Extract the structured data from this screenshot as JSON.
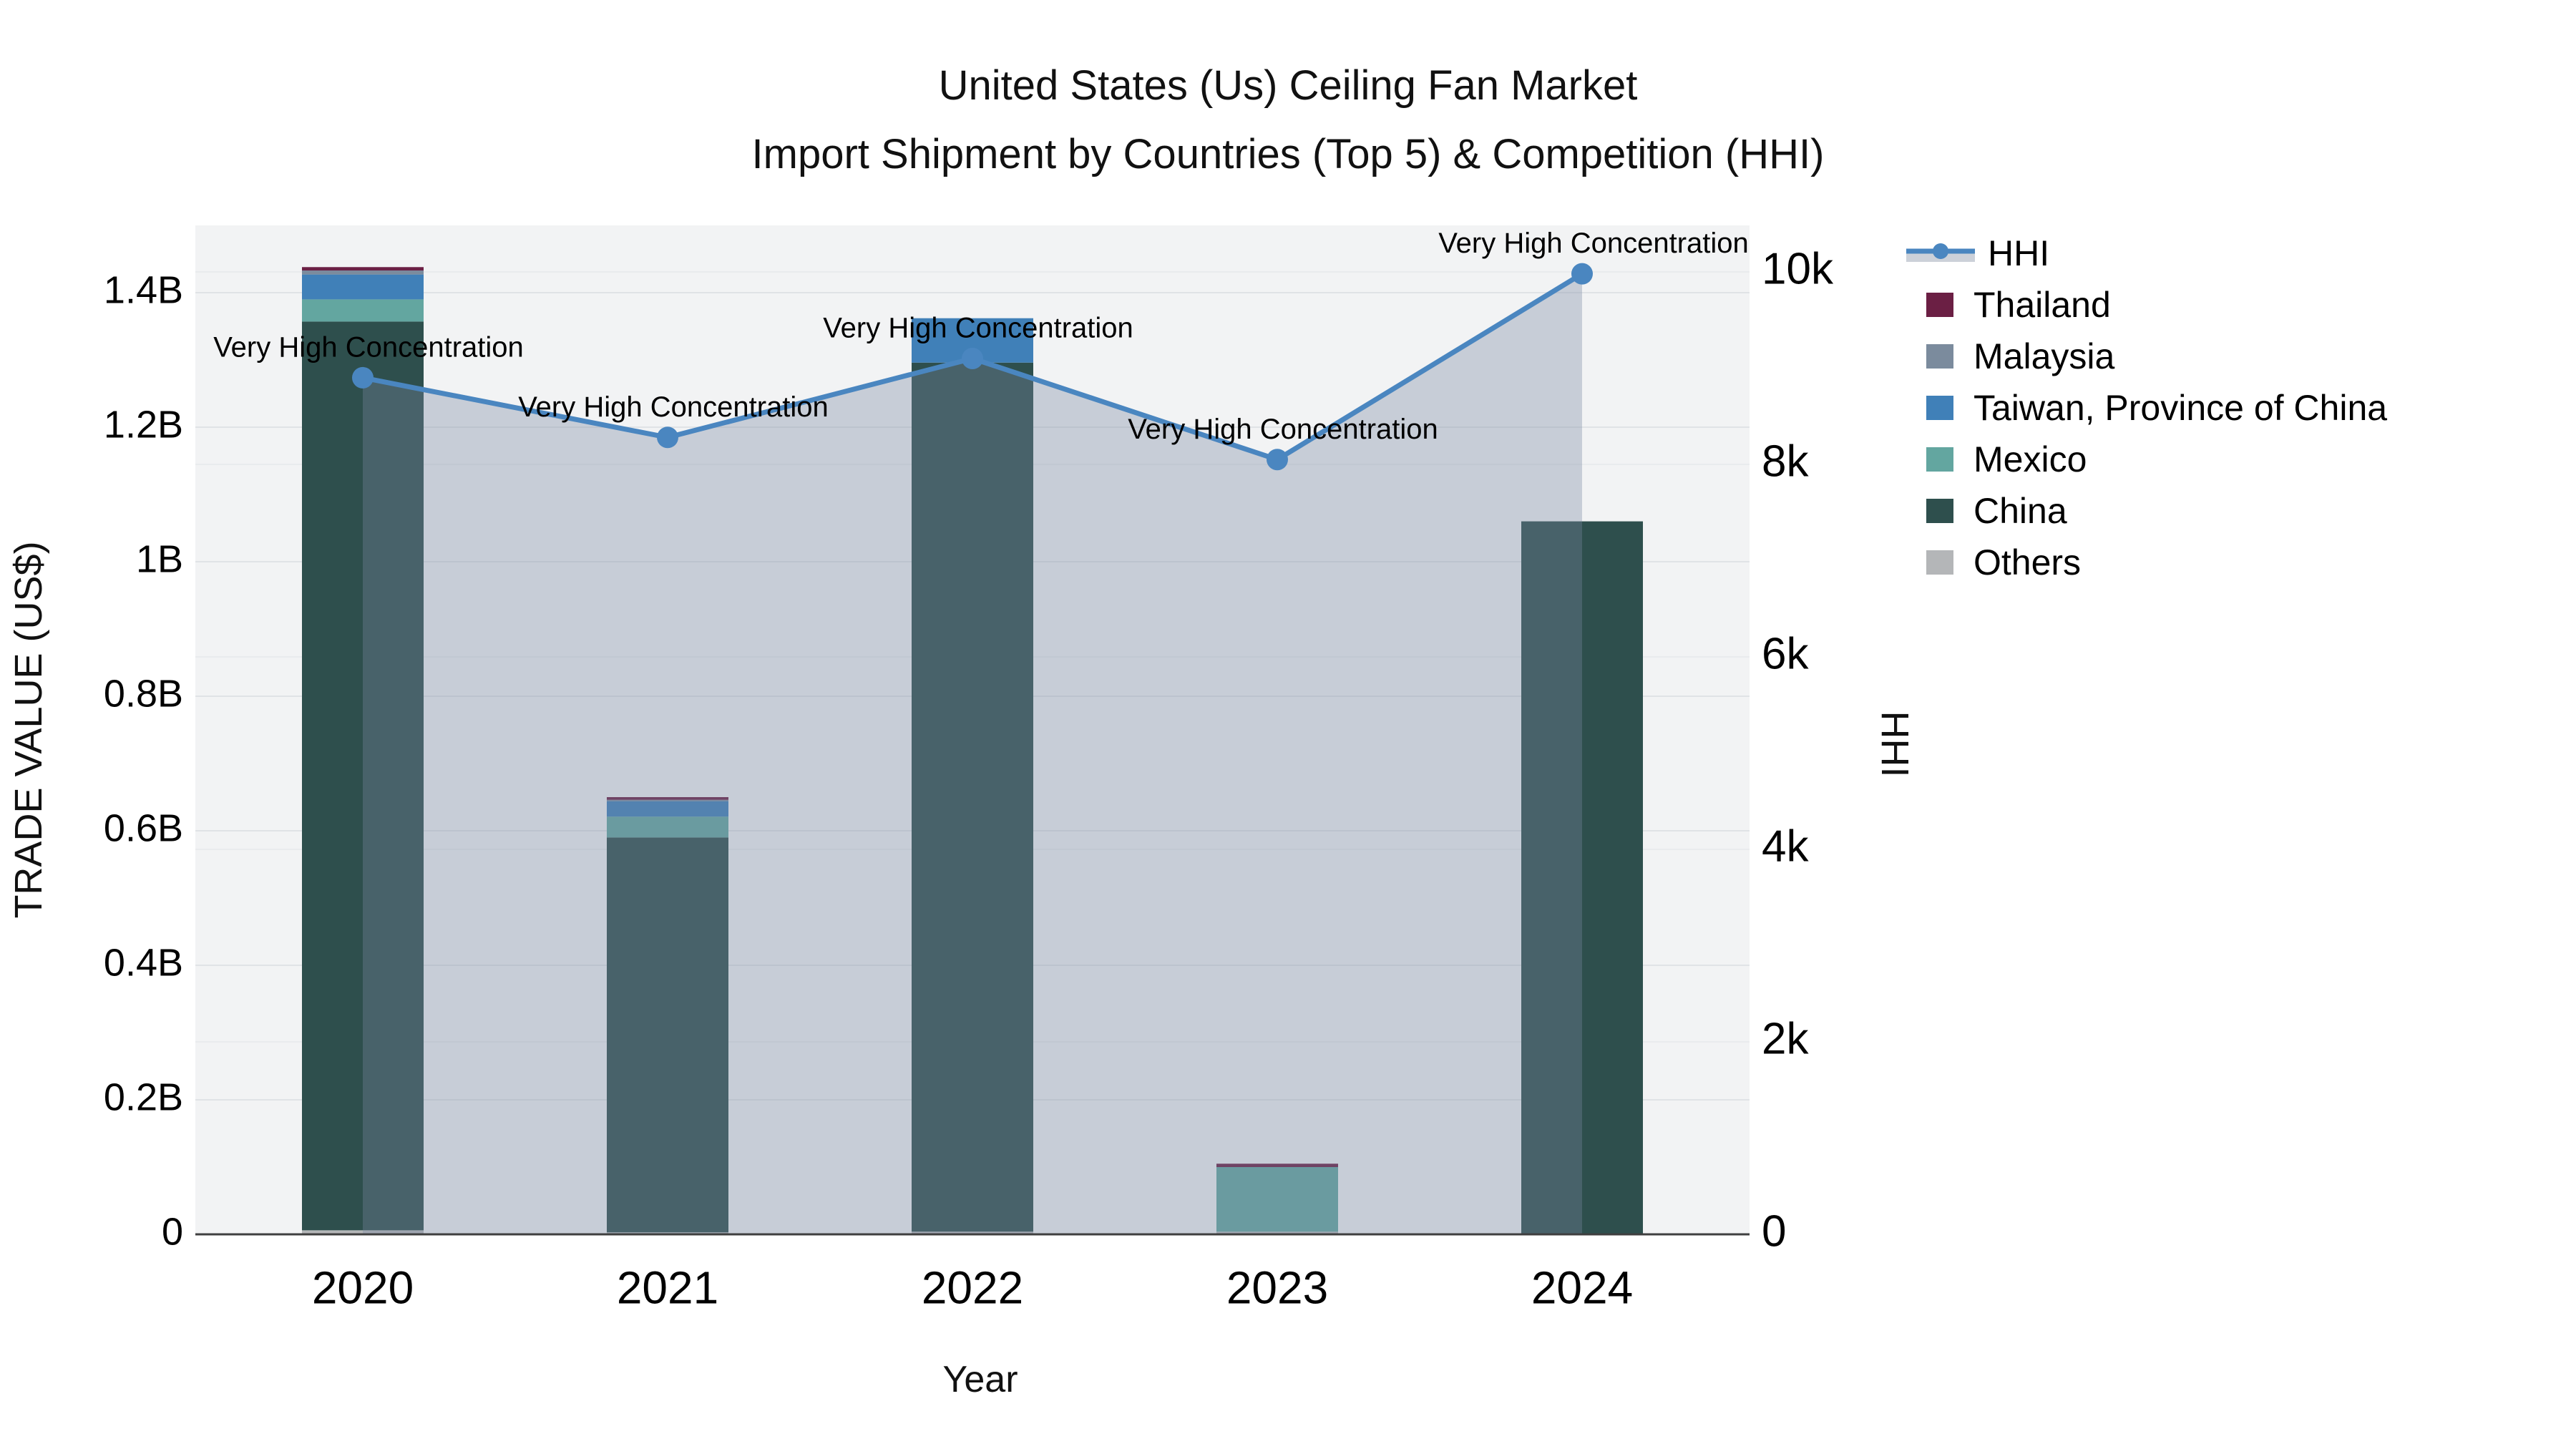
{
  "title": {
    "line1": "United States (Us) Ceiling Fan Market",
    "line2": "Import Shipment by Countries (Top 5) & Competition (HHI)"
  },
  "axes": {
    "y_left": {
      "title": "TRADE VALUE (US$)",
      "ticks": [
        {
          "value": 0,
          "label": "0"
        },
        {
          "value": 0.2,
          "label": "0.2B"
        },
        {
          "value": 0.4,
          "label": "0.4B"
        },
        {
          "value": 0.6,
          "label": "0.6B"
        },
        {
          "value": 0.8,
          "label": "0.8B"
        },
        {
          "value": 1.0,
          "label": "1B"
        },
        {
          "value": 1.2,
          "label": "1.2B"
        },
        {
          "value": 1.4,
          "label": "1.4B"
        }
      ]
    },
    "y_right": {
      "title": "HHI",
      "ticks": [
        {
          "value": 0,
          "label": "0"
        },
        {
          "value": 2000,
          "label": "2k"
        },
        {
          "value": 4000,
          "label": "4k"
        },
        {
          "value": 6000,
          "label": "6k"
        },
        {
          "value": 8000,
          "label": "8k"
        },
        {
          "value": 10000,
          "label": "10k"
        }
      ]
    },
    "x": {
      "title": "Year"
    }
  },
  "chart_data": {
    "type": "bar+line",
    "categories": [
      "2020",
      "2021",
      "2022",
      "2023",
      "2024"
    ],
    "xlabel": "Year",
    "ylabel": "TRADE VALUE (US$)",
    "y2label": "HHI",
    "ylim_billion": [
      0,
      1.5
    ],
    "y2lim": [
      0,
      10483
    ],
    "grid": true,
    "legend_position": "right",
    "stacked_bar_series_bottom_to_top": [
      {
        "name": "Others",
        "color": "#b4b6b8",
        "values_billion": [
          0.006,
          0.003,
          0.004,
          0.004,
          0
        ]
      },
      {
        "name": "China",
        "color": "#2e4f4d",
        "values_billion": [
          1.351,
          0.587,
          1.292,
          0,
          1.06
        ]
      },
      {
        "name": "Mexico",
        "color": "#63a6a0",
        "values_billion": [
          0.033,
          0.031,
          0,
          0.096,
          0
        ]
      },
      {
        "name": "Taiwan, Province of China",
        "color": "#4080b8",
        "values_billion": [
          0.037,
          0.023,
          0.066,
          0,
          0
        ]
      },
      {
        "name": "Malaysia",
        "color": "#7b8b9d",
        "values_billion": [
          0.006,
          0.002,
          0,
          0,
          0
        ]
      },
      {
        "name": "Thailand",
        "color": "#6b1f44",
        "values_billion": [
          0.005,
          0.004,
          0,
          0.005,
          0
        ]
      }
    ],
    "bar_totals_billion": [
      1.438,
      0.65,
      1.362,
      0.105,
      1.06
    ],
    "line_series": {
      "name": "HHI",
      "color": "#4a86c0",
      "area_fill_color": "rgba(120,135,160,0.35)",
      "values": [
        8900,
        8280,
        9100,
        8050,
        9980
      ]
    },
    "annotations": [
      "Very High Concentration",
      "Very High Concentration",
      "Very High Concentration",
      "Very High Concentration",
      "Very High Concentration"
    ]
  },
  "legend": {
    "items": [
      {
        "label": "HHI",
        "swatch": "line",
        "color": "#4a86c0"
      },
      {
        "label": "Thailand",
        "swatch": "square",
        "color": "#6b1f44"
      },
      {
        "label": "Malaysia",
        "swatch": "square",
        "color": "#7b8b9d"
      },
      {
        "label": "Taiwan, Province of China",
        "swatch": "square",
        "color": "#4080b8"
      },
      {
        "label": "Mexico",
        "swatch": "square",
        "color": "#63a6a0"
      },
      {
        "label": "China",
        "swatch": "square",
        "color": "#2e4f4d"
      },
      {
        "label": "Others",
        "swatch": "square",
        "color": "#b4b6b8"
      }
    ]
  },
  "colors": {
    "plot_bg": "#f2f3f4",
    "gridline_left": "#e0e3e6",
    "gridline_right": "#e9ebed",
    "axis_line": "#3f3f3f",
    "area_fill": "rgba(120,135,160,0.35)",
    "annotation_text": "#000000"
  }
}
